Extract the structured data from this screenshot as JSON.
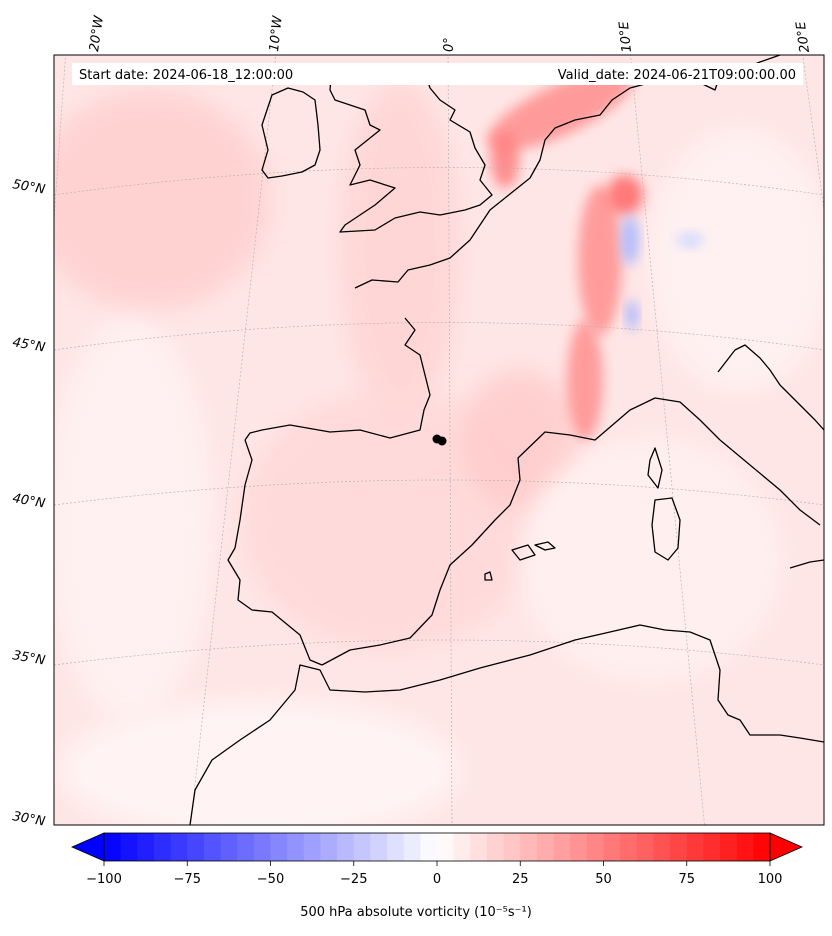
{
  "header": {
    "start_date": "Start date: 2024-06-18_12:00:00",
    "valid_date": "Valid_date: 2024-06-21T09:00:00.00"
  },
  "map": {
    "projection": "lambert-conformal",
    "extent": {
      "lon_min": -22,
      "lon_max": 22,
      "lat_min": 30,
      "lat_max": 55
    },
    "longitude_labels": [
      "20°W",
      "10°W",
      "0°",
      "10°E",
      "20°E"
    ],
    "latitude_labels": [
      "50°N",
      "45°N",
      "40°N",
      "35°N",
      "30°N"
    ],
    "marker": {
      "name": "storm-center",
      "lon": 0,
      "lat": 41.8,
      "color": "#000000"
    },
    "field": {
      "variable": "500 hPa absolute vorticity",
      "features": [
        {
          "name": "alpine-positive-band",
          "sign": "positive",
          "strength": "strong"
        },
        {
          "name": "north-sea-positive-band",
          "sign": "positive",
          "strength": "strong"
        },
        {
          "name": "alpine-negative-patches",
          "sign": "negative",
          "strength": "moderate"
        },
        {
          "name": "iberia-background",
          "sign": "positive",
          "strength": "weak"
        }
      ]
    }
  },
  "colorbar": {
    "ticks": [
      "−100",
      "−75",
      "−50",
      "−25",
      "0",
      "25",
      "50",
      "75",
      "100"
    ],
    "tick_values": [
      -100,
      -75,
      -50,
      -25,
      0,
      25,
      50,
      75,
      100
    ],
    "min": -100,
    "max": 100,
    "extend": "both",
    "colormap": "bwr",
    "color_low": "#0000ff",
    "color_mid": "#ffffff",
    "color_high": "#ff0000",
    "label": "500 hPa absolute vorticity (10⁻⁵s⁻¹)"
  }
}
